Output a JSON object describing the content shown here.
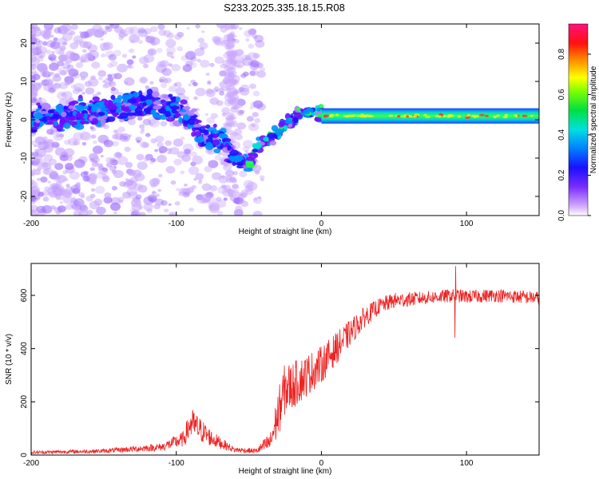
{
  "figure_title": "S233.2025.335.18.15.R08",
  "chart_data": [
    {
      "type": "heatmap",
      "name": "spectrogram",
      "xlabel": "Height of straight line (km)",
      "ylabel": "Frequency (Hz)",
      "xlim": [
        -200,
        150
      ],
      "ylim": [
        -25,
        25
      ],
      "x_ticks": [
        -200,
        -100,
        0,
        100
      ],
      "y_ticks": [
        -20,
        -10,
        0,
        10,
        20
      ],
      "colorbar": {
        "label": "Normalized spectral amplitude",
        "range": [
          0.0,
          0.95
        ],
        "ticks": [
          0.0,
          0.2,
          0.4,
          0.6,
          0.8
        ]
      },
      "ridge": {
        "x": [
          -200,
          -180,
          -160,
          -140,
          -120,
          -100,
          -90,
          -80,
          -70,
          -60,
          -50,
          -45,
          -40,
          -30,
          -20,
          -15,
          -10,
          -5,
          0,
          10,
          50,
          100,
          150
        ],
        "freq": [
          0,
          1,
          2,
          3,
          4,
          3,
          0,
          -5,
          -5,
          -10,
          -12,
          -7,
          -6,
          -3,
          0,
          2,
          2,
          2,
          1,
          1,
          1,
          1,
          1
        ]
      }
    },
    {
      "type": "line",
      "name": "snr",
      "xlabel": "Height of straight line (km)",
      "ylabel": "SNR (10 * v/v)",
      "xlim": [
        -200,
        150
      ],
      "ylim": [
        0,
        720
      ],
      "x_ticks": [
        -200,
        -100,
        0,
        100
      ],
      "y_ticks": [
        0,
        200,
        400,
        600
      ],
      "color": "#ee2222",
      "envelope": {
        "x": [
          -200,
          -150,
          -110,
          -95,
          -90,
          -85,
          -75,
          -60,
          -45,
          -35,
          -30,
          -25,
          -20,
          -10,
          0,
          10,
          20,
          30,
          40,
          50,
          70,
          92,
          100,
          120,
          150
        ],
        "mean": [
          10,
          15,
          30,
          60,
          120,
          100,
          60,
          20,
          15,
          50,
          150,
          250,
          260,
          300,
          340,
          400,
          460,
          520,
          560,
          580,
          590,
          600,
          595,
          600,
          590
        ],
        "noise": [
          6,
          8,
          15,
          30,
          60,
          50,
          30,
          10,
          10,
          40,
          90,
          100,
          90,
          80,
          70,
          60,
          50,
          40,
          30,
          30,
          25,
          25,
          25,
          25,
          25
        ]
      },
      "features": [
        {
          "x": 92.5,
          "value": 710,
          "label": "peak"
        },
        {
          "x": 92.0,
          "value": 440,
          "label": "dip"
        }
      ]
    }
  ]
}
